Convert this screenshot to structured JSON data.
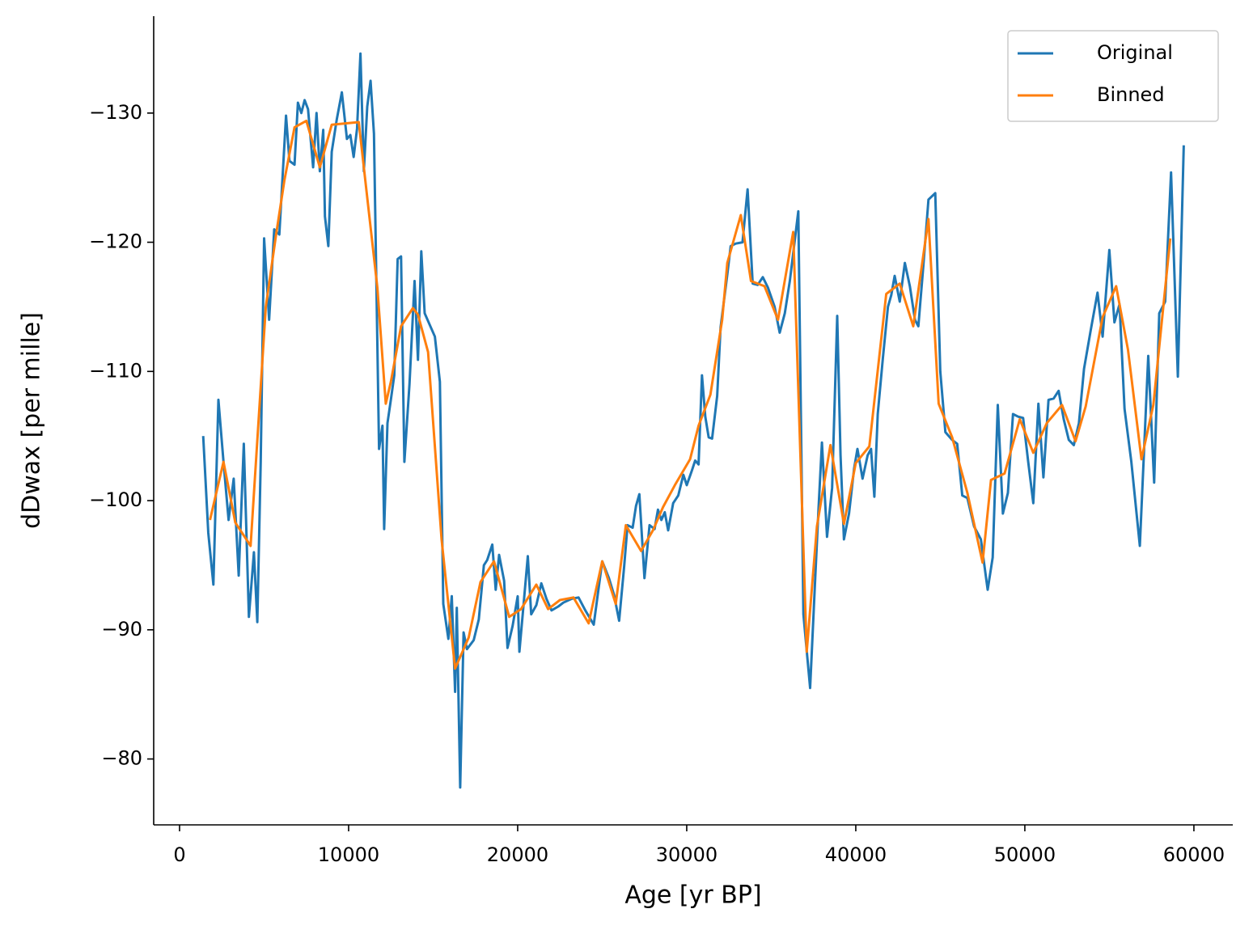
{
  "chart_data": {
    "type": "line",
    "xlabel": "Age [yr BP]",
    "ylabel": "dDwax [per mille]",
    "xlim": [
      -1530,
      62300
    ],
    "ylim": [
      -74.9,
      -137.5
    ],
    "xticks": [
      0,
      10000,
      20000,
      30000,
      40000,
      50000,
      60000
    ],
    "yticks": [
      {
        "value": -130,
        "label": "−130"
      },
      {
        "value": -120,
        "label": "−120"
      },
      {
        "value": -110,
        "label": "−110"
      },
      {
        "value": -100,
        "label": "−100"
      },
      {
        "value": -90,
        "label": "−90"
      },
      {
        "value": -80,
        "label": "−80"
      }
    ],
    "legend": "upper right",
    "series": [
      {
        "name": "Original",
        "color": "#1f77b4",
        "x": [
          1400,
          1700,
          2000,
          2300,
          2600,
          2900,
          3200,
          3500,
          3800,
          4100,
          4400,
          4600,
          4800,
          5000,
          5300,
          5600,
          5900,
          6300,
          6500,
          6800,
          7000,
          7200,
          7400,
          7600,
          7900,
          8100,
          8300,
          8500,
          8600,
          8800,
          9000,
          9300,
          9600,
          9900,
          10100,
          10300,
          10500,
          10700,
          10900,
          11100,
          11300,
          11500,
          11800,
          12000,
          12100,
          12300,
          12500,
          12700,
          12900,
          13100,
          13300,
          13600,
          13900,
          14100,
          14300,
          14500,
          14800,
          15100,
          15400,
          15600,
          15900,
          16100,
          16300,
          16400,
          16600,
          16800,
          17000,
          17400,
          17700,
          18000,
          18200,
          18500,
          18700,
          18900,
          19200,
          19400,
          19700,
          20000,
          20100,
          20300,
          20600,
          20800,
          21100,
          21400,
          21700,
          22000,
          22400,
          22700,
          23200,
          23600,
          24000,
          24500,
          25000,
          25400,
          25700,
          26000,
          26300,
          26500,
          26800,
          27000,
          27200,
          27500,
          27800,
          28100,
          28300,
          28500,
          28700,
          28900,
          29200,
          29500,
          29800,
          30000,
          30300,
          30500,
          30700,
          30900,
          31100,
          31300,
          31500,
          31800,
          32000,
          32400,
          32600,
          32900,
          33300,
          33600,
          33900,
          34200,
          34500,
          34800,
          35200,
          35500,
          35800,
          36100,
          36600,
          36900,
          37300,
          37600,
          37800,
          38000,
          38300,
          38600,
          38900,
          39100,
          39300,
          39600,
          39900,
          40100,
          40400,
          40700,
          40900,
          41100,
          41300,
          41600,
          41900,
          42100,
          42300,
          42600,
          42900,
          43200,
          43500,
          43700,
          44000,
          44300,
          44700,
          45000,
          45300,
          45700,
          46000,
          46300,
          46600,
          47000,
          47400,
          47800,
          48100,
          48400,
          48700,
          49000,
          49300,
          49600,
          49900,
          50200,
          50500,
          50800,
          51100,
          51400,
          51700,
          52000,
          52300,
          52600,
          52900,
          53200,
          53500,
          53900,
          54300,
          54600,
          55000,
          55300,
          55600,
          55900,
          56300,
          56800,
          57300,
          57650,
          57950,
          58300,
          58650,
          59050,
          59400
        ],
        "values": [
          -105,
          -97.5,
          -93.5,
          -107.8,
          -103,
          -98.5,
          -101.7,
          -94.2,
          -104.4,
          -91,
          -96,
          -90.6,
          -103,
          -120.3,
          -114,
          -121,
          -120.6,
          -129.8,
          -126.3,
          -126,
          -130.8,
          -130,
          -131,
          -130.3,
          -125.8,
          -130,
          -125.5,
          -128.7,
          -122,
          -119.7,
          -127,
          -129.5,
          -131.6,
          -128,
          -128.3,
          -126.6,
          -128.8,
          -134.6,
          -125.5,
          -130.5,
          -132.5,
          -128.4,
          -104,
          -105.8,
          -97.8,
          -106,
          -107.8,
          -109.7,
          -118.7,
          -118.9,
          -103,
          -109,
          -117,
          -110.9,
          -119.3,
          -114.5,
          -113.6,
          -112.7,
          -109.2,
          -92,
          -89.3,
          -92.6,
          -85.2,
          -91.7,
          -77.8,
          -89.8,
          -88.5,
          -89.2,
          -90.8,
          -95,
          -95.4,
          -96.6,
          -93.1,
          -95.8,
          -93.8,
          -88.6,
          -90.3,
          -92.6,
          -88.3,
          -91.2,
          -95.7,
          -91.2,
          -91.9,
          -93.6,
          -92.4,
          -91.5,
          -91.8,
          -92.1,
          -92.4,
          -92.5,
          -91.5,
          -90.4,
          -95.3,
          -94,
          -92.7,
          -90.7,
          -94.9,
          -98.1,
          -97.9,
          -99.6,
          -100.5,
          -94,
          -98.1,
          -97.8,
          -99.3,
          -98.5,
          -99.1,
          -97.7,
          -99.8,
          -100.4,
          -102,
          -101.2,
          -102.3,
          -103.1,
          -102.8,
          -109.7,
          -106.5,
          -104.9,
          -104.8,
          -108.1,
          -113.4,
          -117.5,
          -119.7,
          -119.9,
          -120,
          -124.1,
          -116.8,
          -116.7,
          -117.3,
          -116.5,
          -115,
          -113,
          -114.5,
          -117,
          -122.4,
          -91.2,
          -85.5,
          -94,
          -99.5,
          -104.5,
          -97.2,
          -101,
          -114.3,
          -103.5,
          -97,
          -99,
          -102.5,
          -104,
          -101.7,
          -103.5,
          -104,
          -100.3,
          -106.7,
          -111,
          -115,
          -115.9,
          -117.4,
          -115.4,
          -118.4,
          -116.6,
          -114,
          -113.5,
          -118.2,
          -123.3,
          -123.8,
          -110,
          -105.3,
          -104.7,
          -104.4,
          -100.4,
          -100.2,
          -98,
          -97,
          -93.1,
          -95.6,
          -107.4,
          -99,
          -100.6,
          -106.7,
          -106.5,
          -106.4,
          -103,
          -99.8,
          -107.5,
          -101.8,
          -107.8,
          -107.9,
          -108.5,
          -106.3,
          -104.7,
          -104.3,
          -106,
          -110.2,
          -113.2,
          -116.1,
          -112.7,
          -119.4,
          -113.8,
          -115.2,
          -107.1,
          -103,
          -96.5,
          -111.2,
          -101.4,
          -114.5,
          -115.4,
          -125.4,
          -109.6,
          -127.5
        ]
      },
      {
        "name": "Binned",
        "color": "#ff7f0e",
        "x": [
          1800,
          2600,
          3300,
          4200,
          5100,
          5700,
          6200,
          6800,
          7500,
          8300,
          9000,
          10600,
          11700,
          12200,
          12500,
          13100,
          13800,
          14100,
          14700,
          15500,
          16300,
          17100,
          17800,
          18600,
          19500,
          20200,
          21100,
          21800,
          22500,
          23300,
          24200,
          25000,
          25800,
          26400,
          27300,
          28000,
          28600,
          29300,
          30200,
          30700,
          31400,
          32100,
          32400,
          33200,
          33800,
          34600,
          35400,
          36300,
          37100,
          37700,
          38500,
          39300,
          40000,
          40800,
          41800,
          42600,
          43400,
          44300,
          44900,
          45700,
          46600,
          47500,
          48000,
          48800,
          49700,
          50500,
          51300,
          52200,
          53000,
          53600,
          54600,
          55400,
          56100,
          56900,
          57600,
          58600
        ],
        "values": [
          -98.5,
          -103,
          -98.3,
          -96.5,
          -115,
          -120.5,
          -124.8,
          -128.9,
          -129.4,
          -125.8,
          -129.1,
          -129.3,
          -116.5,
          -107.5,
          -109.2,
          -113.5,
          -114.9,
          -114.4,
          -111.5,
          -97,
          -87,
          -89.4,
          -93.7,
          -95.3,
          -91,
          -91.6,
          -93.5,
          -91.6,
          -92.3,
          -92.5,
          -90.5,
          -95.3,
          -92,
          -98.1,
          -96.1,
          -97.7,
          -99.5,
          -101.2,
          -103.2,
          -105.8,
          -108.2,
          -114,
          -118.4,
          -122.1,
          -117,
          -116.6,
          -114,
          -120.8,
          -88.3,
          -98,
          -104.3,
          -98.2,
          -102.9,
          -104.2,
          -116,
          -116.8,
          -113.5,
          -121.8,
          -107.5,
          -104.9,
          -100.6,
          -95.2,
          -101.6,
          -102.1,
          -106.3,
          -103.7,
          -106,
          -107.4,
          -104.6,
          -107.3,
          -114.2,
          -116.6,
          -111.7,
          -103.2,
          -107.4,
          -120.3
        ]
      }
    ]
  }
}
